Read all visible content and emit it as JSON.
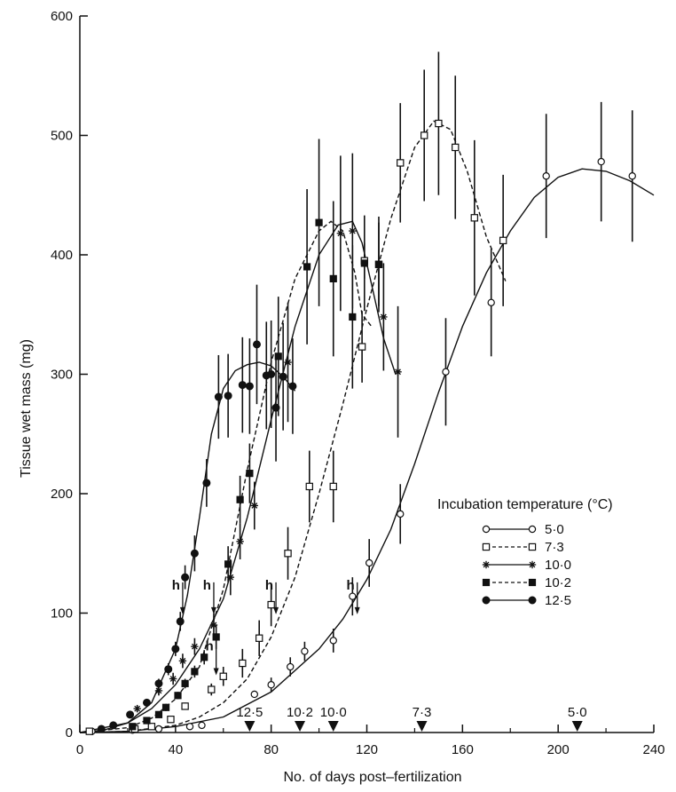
{
  "chart_data": {
    "type": "scatter",
    "xlabel": "No. of days post–fertilization",
    "ylabel": "Tissue wet mass (mg)",
    "xlim": [
      0,
      240
    ],
    "ylim": [
      0,
      600
    ],
    "x_ticks": [
      "0",
      "40",
      "80",
      "120",
      "160",
      "200",
      "240"
    ],
    "y_ticks": [
      "0",
      "100",
      "200",
      "300",
      "400",
      "500",
      "600"
    ],
    "legend_title": "Incubation temperature (°C)",
    "legend_placement": "right",
    "grid": false,
    "series": [
      {
        "name": "5·0",
        "marker": "open-circle",
        "line": "solid",
        "points": [
          [
            5,
            1
          ],
          [
            22,
            2
          ],
          [
            33,
            3
          ],
          [
            46,
            5
          ],
          [
            51,
            6
          ],
          [
            73,
            32
          ],
          [
            80,
            40
          ],
          [
            88,
            55
          ],
          [
            94,
            68
          ],
          [
            106,
            77
          ],
          [
            114,
            114
          ],
          [
            121,
            142
          ],
          [
            134,
            183
          ],
          [
            153,
            302
          ],
          [
            172,
            360
          ],
          [
            195,
            466
          ],
          [
            218,
            478
          ],
          [
            231,
            466
          ]
        ],
        "err": [
          [
            5,
            0
          ],
          [
            22,
            0
          ],
          [
            33,
            0
          ],
          [
            46,
            0
          ],
          [
            51,
            0
          ],
          [
            73,
            3
          ],
          [
            80,
            6
          ],
          [
            88,
            8
          ],
          [
            94,
            8
          ],
          [
            106,
            10
          ],
          [
            114,
            16
          ],
          [
            121,
            20
          ],
          [
            134,
            25
          ],
          [
            153,
            45
          ],
          [
            172,
            45
          ],
          [
            195,
            52
          ],
          [
            218,
            50
          ],
          [
            231,
            55
          ]
        ],
        "curve": [
          [
            0,
            0
          ],
          [
            20,
            1
          ],
          [
            40,
            5
          ],
          [
            60,
            13
          ],
          [
            80,
            34
          ],
          [
            100,
            70
          ],
          [
            110,
            95
          ],
          [
            120,
            128
          ],
          [
            130,
            170
          ],
          [
            140,
            225
          ],
          [
            150,
            285
          ],
          [
            160,
            340
          ],
          [
            170,
            385
          ],
          [
            180,
            420
          ],
          [
            190,
            448
          ],
          [
            200,
            465
          ],
          [
            210,
            472
          ],
          [
            220,
            470
          ],
          [
            230,
            462
          ],
          [
            240,
            450
          ]
        ]
      },
      {
        "name": "7·3",
        "marker": "open-square",
        "line": "dashed",
        "points": [
          [
            4,
            1
          ],
          [
            23,
            3
          ],
          [
            30,
            5
          ],
          [
            38,
            11
          ],
          [
            44,
            22
          ],
          [
            55,
            36
          ],
          [
            60,
            47
          ],
          [
            68,
            58
          ],
          [
            75,
            79
          ],
          [
            80,
            107
          ],
          [
            87,
            150
          ],
          [
            96,
            206
          ],
          [
            106,
            206
          ],
          [
            118,
            323
          ],
          [
            119,
            395
          ],
          [
            125,
            392
          ],
          [
            134,
            477
          ],
          [
            144,
            500
          ],
          [
            150,
            510
          ],
          [
            157,
            490
          ],
          [
            165,
            431
          ],
          [
            177,
            412
          ]
        ],
        "err": [
          [
            4,
            0
          ],
          [
            23,
            0
          ],
          [
            30,
            0
          ],
          [
            38,
            2
          ],
          [
            44,
            3
          ],
          [
            55,
            5
          ],
          [
            60,
            8
          ],
          [
            68,
            12
          ],
          [
            75,
            15
          ],
          [
            80,
            18
          ],
          [
            87,
            22
          ],
          [
            96,
            30
          ],
          [
            106,
            30
          ],
          [
            118,
            30
          ],
          [
            119,
            15
          ],
          [
            125,
            35
          ],
          [
            134,
            50
          ],
          [
            144,
            55
          ],
          [
            150,
            60
          ],
          [
            157,
            60
          ],
          [
            165,
            65
          ],
          [
            177,
            55
          ]
        ],
        "curve": [
          [
            0,
            0
          ],
          [
            20,
            1
          ],
          [
            40,
            6
          ],
          [
            50,
            13
          ],
          [
            60,
            25
          ],
          [
            70,
            45
          ],
          [
            80,
            80
          ],
          [
            90,
            130
          ],
          [
            100,
            200
          ],
          [
            110,
            275
          ],
          [
            120,
            355
          ],
          [
            130,
            430
          ],
          [
            140,
            490
          ],
          [
            148,
            512
          ],
          [
            155,
            505
          ],
          [
            162,
            470
          ],
          [
            170,
            415
          ],
          [
            178,
            378
          ]
        ]
      },
      {
        "name": "10·0",
        "marker": "star",
        "line": "solid",
        "points": [
          [
            24,
            20
          ],
          [
            33,
            35
          ],
          [
            39,
            45
          ],
          [
            43,
            60
          ],
          [
            48,
            72
          ],
          [
            56,
            90
          ],
          [
            63,
            130
          ],
          [
            67,
            160
          ],
          [
            73,
            190
          ],
          [
            87,
            310
          ],
          [
            109,
            418
          ],
          [
            114,
            420
          ],
          [
            127,
            348
          ],
          [
            133,
            302
          ]
        ],
        "err": [
          [
            24,
            3
          ],
          [
            33,
            4
          ],
          [
            39,
            5
          ],
          [
            43,
            6
          ],
          [
            48,
            7
          ],
          [
            56,
            10
          ],
          [
            63,
            15
          ],
          [
            67,
            15
          ],
          [
            73,
            20
          ],
          [
            87,
            50
          ],
          [
            109,
            65
          ],
          [
            114,
            65
          ],
          [
            127,
            45
          ],
          [
            133,
            55
          ]
        ],
        "curve": [
          [
            0,
            0
          ],
          [
            20,
            8
          ],
          [
            30,
            20
          ],
          [
            40,
            40
          ],
          [
            50,
            70
          ],
          [
            60,
            112
          ],
          [
            70,
            180
          ],
          [
            80,
            262
          ],
          [
            90,
            340
          ],
          [
            100,
            400
          ],
          [
            108,
            425
          ],
          [
            114,
            428
          ],
          [
            118,
            410
          ],
          [
            122,
            375
          ],
          [
            127,
            330
          ],
          [
            132,
            300
          ]
        ]
      },
      {
        "name": "10·2",
        "marker": "filled-square",
        "line": "dashed",
        "points": [
          [
            22,
            5
          ],
          [
            28,
            10
          ],
          [
            33,
            15
          ],
          [
            36,
            21
          ],
          [
            41,
            31
          ],
          [
            44,
            41
          ],
          [
            48,
            51
          ],
          [
            52,
            63
          ],
          [
            57,
            80
          ],
          [
            62,
            141
          ],
          [
            67,
            195
          ],
          [
            71,
            217
          ],
          [
            83,
            315
          ],
          [
            95,
            390
          ],
          [
            100,
            427
          ],
          [
            106,
            380
          ],
          [
            114,
            348
          ],
          [
            119,
            393
          ],
          [
            125,
            392
          ]
        ],
        "err": [
          [
            22,
            1
          ],
          [
            28,
            2
          ],
          [
            33,
            2
          ],
          [
            36,
            3
          ],
          [
            41,
            3
          ],
          [
            44,
            4
          ],
          [
            48,
            5
          ],
          [
            52,
            6
          ],
          [
            57,
            10
          ],
          [
            62,
            15
          ],
          [
            67,
            20
          ],
          [
            71,
            25
          ],
          [
            83,
            50
          ],
          [
            95,
            65
          ],
          [
            100,
            70
          ],
          [
            106,
            65
          ],
          [
            114,
            60
          ],
          [
            119,
            40
          ],
          [
            125,
            40
          ]
        ],
        "curve": [
          [
            0,
            0
          ],
          [
            20,
            4
          ],
          [
            30,
            12
          ],
          [
            40,
            28
          ],
          [
            50,
            55
          ],
          [
            60,
            120
          ],
          [
            70,
            220
          ],
          [
            80,
            310
          ],
          [
            90,
            380
          ],
          [
            100,
            420
          ],
          [
            105,
            428
          ],
          [
            110,
            420
          ],
          [
            115,
            385
          ],
          [
            118,
            350
          ],
          [
            122,
            340
          ]
        ]
      },
      {
        "name": "12·5",
        "marker": "filled-circle",
        "line": "solid",
        "points": [
          [
            9,
            3
          ],
          [
            14,
            6
          ],
          [
            21,
            15
          ],
          [
            28,
            25
          ],
          [
            33,
            41
          ],
          [
            37,
            53
          ],
          [
            40,
            70
          ],
          [
            42,
            93
          ],
          [
            44,
            130
          ],
          [
            48,
            150
          ],
          [
            53,
            209
          ],
          [
            58,
            281
          ],
          [
            62,
            282
          ],
          [
            68,
            291
          ],
          [
            71,
            290
          ],
          [
            74,
            325
          ],
          [
            78,
            299
          ],
          [
            80,
            300
          ],
          [
            82,
            272
          ],
          [
            85,
            298
          ],
          [
            89,
            290
          ]
        ],
        "err": [
          [
            9,
            0
          ],
          [
            14,
            1
          ],
          [
            21,
            2
          ],
          [
            28,
            3
          ],
          [
            33,
            4
          ],
          [
            37,
            5
          ],
          [
            40,
            6
          ],
          [
            42,
            8
          ],
          [
            44,
            10
          ],
          [
            48,
            15
          ],
          [
            53,
            20
          ],
          [
            58,
            35
          ],
          [
            62,
            35
          ],
          [
            68,
            40
          ],
          [
            71,
            40
          ],
          [
            74,
            50
          ],
          [
            78,
            45
          ],
          [
            80,
            45
          ],
          [
            82,
            45
          ],
          [
            85,
            45
          ],
          [
            89,
            40
          ]
        ],
        "curve": [
          [
            0,
            0
          ],
          [
            10,
            2
          ],
          [
            20,
            8
          ],
          [
            30,
            25
          ],
          [
            40,
            70
          ],
          [
            45,
            115
          ],
          [
            50,
            180
          ],
          [
            55,
            250
          ],
          [
            60,
            288
          ],
          [
            65,
            303
          ],
          [
            70,
            308
          ],
          [
            75,
            310
          ],
          [
            80,
            307
          ],
          [
            85,
            298
          ],
          [
            90,
            286
          ]
        ]
      }
    ],
    "annotations": {
      "h_markers": [
        {
          "label": "h",
          "x": 43,
          "y": 96
        },
        {
          "label": "h",
          "x": 56,
          "y": 96
        },
        {
          "label": "h",
          "x": 57,
          "y": 45
        },
        {
          "label": "h",
          "x": 82,
          "y": 96
        },
        {
          "label": "h",
          "x": 116,
          "y": 96
        }
      ],
      "hatch_markers": [
        {
          "label": "12·5",
          "x": 71
        },
        {
          "label": "10·2",
          "x": 92
        },
        {
          "label": "10·0",
          "x": 106
        },
        {
          "label": "7·3",
          "x": 143
        },
        {
          "label": "5·0",
          "x": 208
        }
      ]
    }
  }
}
